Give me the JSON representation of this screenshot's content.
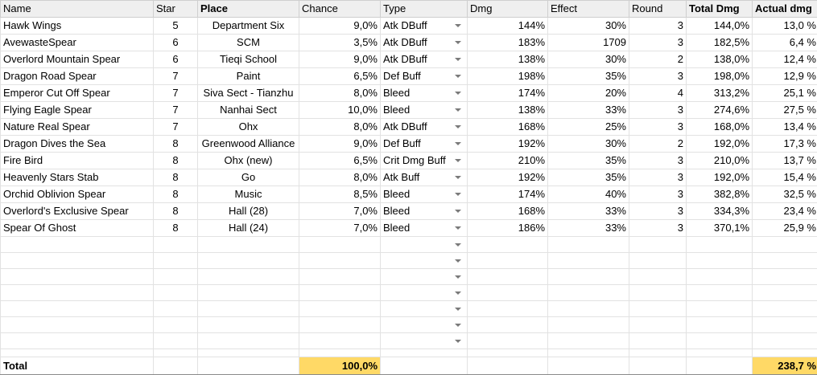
{
  "headers": {
    "name": "Name",
    "star": "Star",
    "place": "Place",
    "chance": "Chance",
    "type": "Type",
    "dmg": "Dmg",
    "effect": "Effect",
    "round": "Round",
    "total_dmg": "Total Dmg",
    "actual_dmg": "Actual dmg"
  },
  "rows": [
    {
      "name": "Hawk Wings",
      "star": "5",
      "place": "Department Six",
      "chance": "9,0%",
      "type": "Atk DBuff",
      "dmg": "144%",
      "effect": "30%",
      "round": "3",
      "total_dmg": "144,0%",
      "actual_dmg": "13,0 %"
    },
    {
      "name": "AvewasteSpear",
      "star": "6",
      "place": "SCM",
      "chance": "3,5%",
      "type": "Atk DBuff",
      "dmg": "183%",
      "effect": "1709",
      "round": "3",
      "total_dmg": "182,5%",
      "actual_dmg": "6,4 %"
    },
    {
      "name": "Overlord Mountain Spear",
      "star": "6",
      "place": "Tieqi School",
      "chance": "9,0%",
      "type": "Atk DBuff",
      "dmg": "138%",
      "effect": "30%",
      "round": "2",
      "total_dmg": "138,0%",
      "actual_dmg": "12,4 %"
    },
    {
      "name": "Dragon Road Spear",
      "star": "7",
      "place": "Paint",
      "chance": "6,5%",
      "type": "Def Buff",
      "dmg": "198%",
      "effect": "35%",
      "round": "3",
      "total_dmg": "198,0%",
      "actual_dmg": "12,9 %"
    },
    {
      "name": "Emperor Cut Off Spear",
      "star": "7",
      "place": "Siva Sect - Tianzhu",
      "chance": "8,0%",
      "type": "Bleed",
      "dmg": "174%",
      "effect": "20%",
      "round": "4",
      "total_dmg": "313,2%",
      "actual_dmg": "25,1 %"
    },
    {
      "name": "Flying Eagle Spear",
      "star": "7",
      "place": "Nanhai Sect",
      "chance": "10,0%",
      "type": "Bleed",
      "dmg": "138%",
      "effect": "33%",
      "round": "3",
      "total_dmg": "274,6%",
      "actual_dmg": "27,5 %"
    },
    {
      "name": "Nature Real Spear",
      "star": "7",
      "place": "Ohx",
      "chance": "8,0%",
      "type": "Atk DBuff",
      "dmg": "168%",
      "effect": "25%",
      "round": "3",
      "total_dmg": "168,0%",
      "actual_dmg": "13,4 %"
    },
    {
      "name": "Dragon Dives the Sea",
      "star": "8",
      "place": "Greenwood Alliance",
      "chance": "9,0%",
      "type": "Def Buff",
      "dmg": "192%",
      "effect": "30%",
      "round": "2",
      "total_dmg": "192,0%",
      "actual_dmg": "17,3 %"
    },
    {
      "name": "Fire Bird",
      "star": "8",
      "place": "Ohx (new)",
      "chance": "6,5%",
      "type": "Crit Dmg Buff",
      "dmg": "210%",
      "effect": "35%",
      "round": "3",
      "total_dmg": "210,0%",
      "actual_dmg": "13,7 %"
    },
    {
      "name": "Heavenly Stars Stab",
      "star": "8",
      "place": "Go",
      "chance": "8,0%",
      "type": "Atk Buff",
      "dmg": "192%",
      "effect": "35%",
      "round": "3",
      "total_dmg": "192,0%",
      "actual_dmg": "15,4 %"
    },
    {
      "name": "Orchid Oblivion Spear",
      "star": "8",
      "place": "Music",
      "chance": "8,5%",
      "type": "Bleed",
      "dmg": "174%",
      "effect": "40%",
      "round": "3",
      "total_dmg": "382,8%",
      "actual_dmg": "32,5 %"
    },
    {
      "name": "Overlord's Exclusive Spear",
      "star": "8",
      "place": "Hall (28)",
      "chance": "7,0%",
      "type": "Bleed",
      "dmg": "168%",
      "effect": "33%",
      "round": "3",
      "total_dmg": "334,3%",
      "actual_dmg": "23,4 %"
    },
    {
      "name": "Spear Of Ghost",
      "star": "8",
      "place": "Hall (24)",
      "chance": "7,0%",
      "type": "Bleed",
      "dmg": "186%",
      "effect": "33%",
      "round": "3",
      "total_dmg": "370,1%",
      "actual_dmg": "25,9 %"
    }
  ],
  "blank_rows": 7,
  "total": {
    "label": "Total",
    "chance": "100,0%",
    "actual_dmg": "238,7 %"
  },
  "colors": {
    "header_bg": "#efefef",
    "highlight": "#ffd966",
    "grid": "#e2e2e2"
  },
  "icons": {
    "dropdown": "dropdown-arrow-icon"
  }
}
